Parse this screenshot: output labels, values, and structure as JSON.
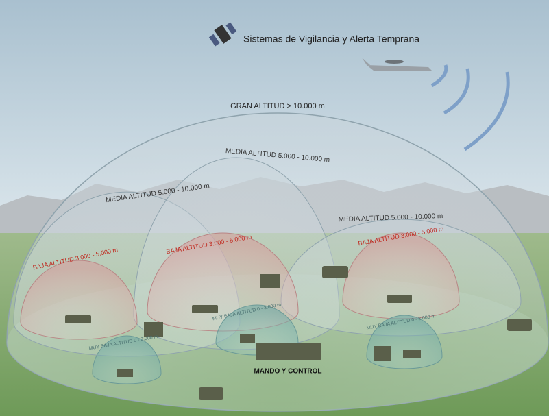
{
  "header": {
    "title": "Sistemas de Vigilancia y Alerta Temprana"
  },
  "zones": {
    "high": {
      "label": "GRAN ALTITUD > 10.000 m"
    },
    "medium": [
      {
        "label": "MEDIA ALTITUD 5.000 - 10.000 m"
      },
      {
        "label": "MEDIA ALTITUD 5.000 - 10.000 m"
      },
      {
        "label": "MEDIA ALTITUD 5.000 - 10.000 m"
      }
    ],
    "low": [
      {
        "label": "BAJA ALTITUD 3.000 - 5.000 m"
      },
      {
        "label": "BAJA ALTITUD 3.000 - 5.000 m"
      },
      {
        "label": "BAJA ALTITUD 3.000 - 5.000 m"
      }
    ],
    "very_low": [
      {
        "label": "MUY BAJA ALTITUD 0 - 3.000 m"
      },
      {
        "label": "MUY BAJA ALTITUD 0 - 3.000 m"
      },
      {
        "label": "MUY BAJA ALTITUD 0 - 3.000 m"
      }
    ]
  },
  "command": {
    "label": "MANDO Y CONTROL"
  }
}
